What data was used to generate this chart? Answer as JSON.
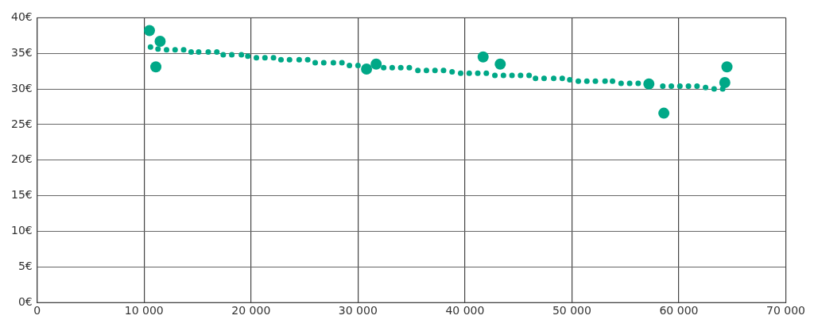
{
  "chart_data": {
    "type": "scatter",
    "xlim": [
      0,
      70000
    ],
    "ylim": [
      0,
      40
    ],
    "xticks": [
      0,
      {
        "value": 10000,
        "label": "10 000"
      },
      {
        "value": 20000,
        "label": "20 000"
      },
      {
        "value": 30000,
        "label": "30 000"
      },
      {
        "value": 40000,
        "label": "40 000"
      },
      {
        "value": 50000,
        "label": "50 000"
      },
      {
        "value": 60000,
        "label": "60 000"
      },
      {
        "value": 70000,
        "label": "70 000"
      }
    ],
    "yticks": [
      {
        "value": 0,
        "label": "0€"
      },
      {
        "value": 5,
        "label": "5€"
      },
      {
        "value": 10,
        "label": "10€"
      },
      {
        "value": 15,
        "label": "15€"
      },
      {
        "value": 20,
        "label": "20€"
      },
      {
        "value": 25,
        "label": "25€"
      },
      {
        "value": 30,
        "label": "30€"
      },
      {
        "value": 35,
        "label": "35€"
      },
      {
        "value": 40,
        "label": "40€"
      }
    ],
    "grid": true,
    "marker": "circle",
    "series": [
      {
        "color": "#00a887",
        "x": [
          10600,
          11300,
          12100,
          12900,
          13700,
          14400,
          15100,
          16000,
          16800,
          17400,
          18200,
          19100,
          19700,
          20500,
          21300,
          22100,
          22800,
          23600,
          24500,
          25300,
          26000,
          26800,
          27700,
          28500,
          29200,
          30000,
          32400,
          33200,
          34000,
          34800,
          35600,
          36400,
          37200,
          38000,
          38800,
          39600,
          40400,
          41200,
          42000,
          42800,
          43600,
          44400,
          45200,
          46000,
          46600,
          47400,
          48300,
          49100,
          49800,
          50600,
          51400,
          52200,
          53100,
          53800,
          54600,
          55400,
          56200,
          58500,
          59300,
          60100,
          60900,
          61700,
          62500,
          63300,
          64100
        ],
        "values": [
          35.9,
          35.6,
          35.5,
          35.5,
          35.5,
          35.2,
          35.2,
          35.2,
          35.2,
          34.8,
          34.8,
          34.8,
          34.6,
          34.4,
          34.4,
          34.4,
          34.1,
          34.1,
          34.1,
          34.1,
          33.7,
          33.7,
          33.7,
          33.7,
          33.3,
          33.3,
          33.0,
          33.0,
          33.0,
          33.0,
          32.6,
          32.6,
          32.6,
          32.6,
          32.4,
          32.2,
          32.2,
          32.2,
          32.2,
          31.9,
          31.9,
          31.9,
          31.9,
          31.9,
          31.5,
          31.5,
          31.5,
          31.5,
          31.3,
          31.1,
          31.1,
          31.1,
          31.1,
          31.1,
          30.8,
          30.8,
          30.8,
          30.4,
          30.4,
          30.4,
          30.4,
          30.4,
          30.2,
          30.0,
          30.0
        ]
      },
      {
        "color": "#00a887",
        "x": [
          10500,
          11500,
          11100,
          30800,
          31700,
          41700,
          43300,
          57200,
          58600,
          64300,
          64500
        ],
        "values": [
          38.2,
          36.7,
          33.1,
          32.8,
          33.5,
          34.5,
          33.5,
          30.7,
          26.6,
          30.9,
          33.1
        ]
      }
    ]
  }
}
